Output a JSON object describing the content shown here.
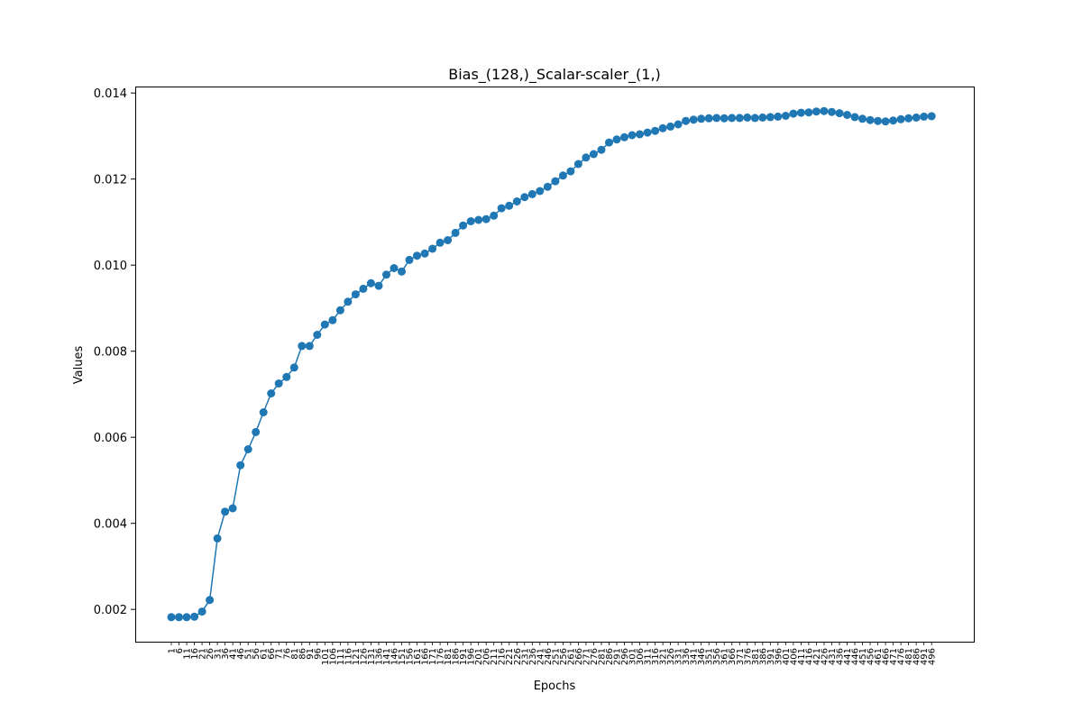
{
  "chart_data": {
    "type": "line",
    "title": "Bias_(128,)_Scalar-scaler_(1,)",
    "xlabel": "Epochs",
    "ylabel": "Values",
    "x_range": [
      1,
      500
    ],
    "ylim": [
      0.00125,
      0.01415
    ],
    "yticks": [
      "0.002",
      "0.004",
      "0.006",
      "0.008",
      "0.010",
      "0.012",
      "0.014"
    ],
    "ytick_values": [
      0.002,
      0.004,
      0.006,
      0.008,
      0.01,
      0.012,
      0.014
    ],
    "xtick_step": 5,
    "grid": false,
    "legend": "none",
    "marker": "circle",
    "series_color": "#1f77b4",
    "series": [
      {
        "x_start": 1,
        "x_step": 5,
        "values": [
          0.00182,
          0.00182,
          0.00182,
          0.00183,
          0.00195,
          0.00222,
          0.00365,
          0.00427,
          0.00435,
          0.00535,
          0.00572,
          0.00612,
          0.00658,
          0.00702,
          0.00725,
          0.0074,
          0.00762,
          0.00812,
          0.00812,
          0.00838,
          0.00862,
          0.00872,
          0.00895,
          0.00915,
          0.00932,
          0.00945,
          0.00958,
          0.00952,
          0.00978,
          0.00993,
          0.00985,
          0.01012,
          0.01022,
          0.01027,
          0.01038,
          0.01052,
          0.01058,
          0.01075,
          0.01092,
          0.01102,
          0.01105,
          0.01107,
          0.01115,
          0.01132,
          0.01138,
          0.01148,
          0.01158,
          0.01165,
          0.01172,
          0.01182,
          0.01195,
          0.01208,
          0.01218,
          0.01235,
          0.0125,
          0.01258,
          0.01268,
          0.01285,
          0.01292,
          0.01297,
          0.01302,
          0.01304,
          0.01308,
          0.01312,
          0.01318,
          0.01322,
          0.01327,
          0.01335,
          0.01338,
          0.0134,
          0.01341,
          0.01342,
          0.01341,
          0.01342,
          0.01342,
          0.01343,
          0.01342,
          0.01343,
          0.01344,
          0.01345,
          0.01347,
          0.01352,
          0.01354,
          0.01355,
          0.01357,
          0.01358,
          0.01356,
          0.01353,
          0.01349,
          0.01344,
          0.0134,
          0.01337,
          0.01335,
          0.01334,
          0.01336,
          0.01339,
          0.01341,
          0.01343,
          0.01345,
          0.01346
        ]
      }
    ]
  }
}
